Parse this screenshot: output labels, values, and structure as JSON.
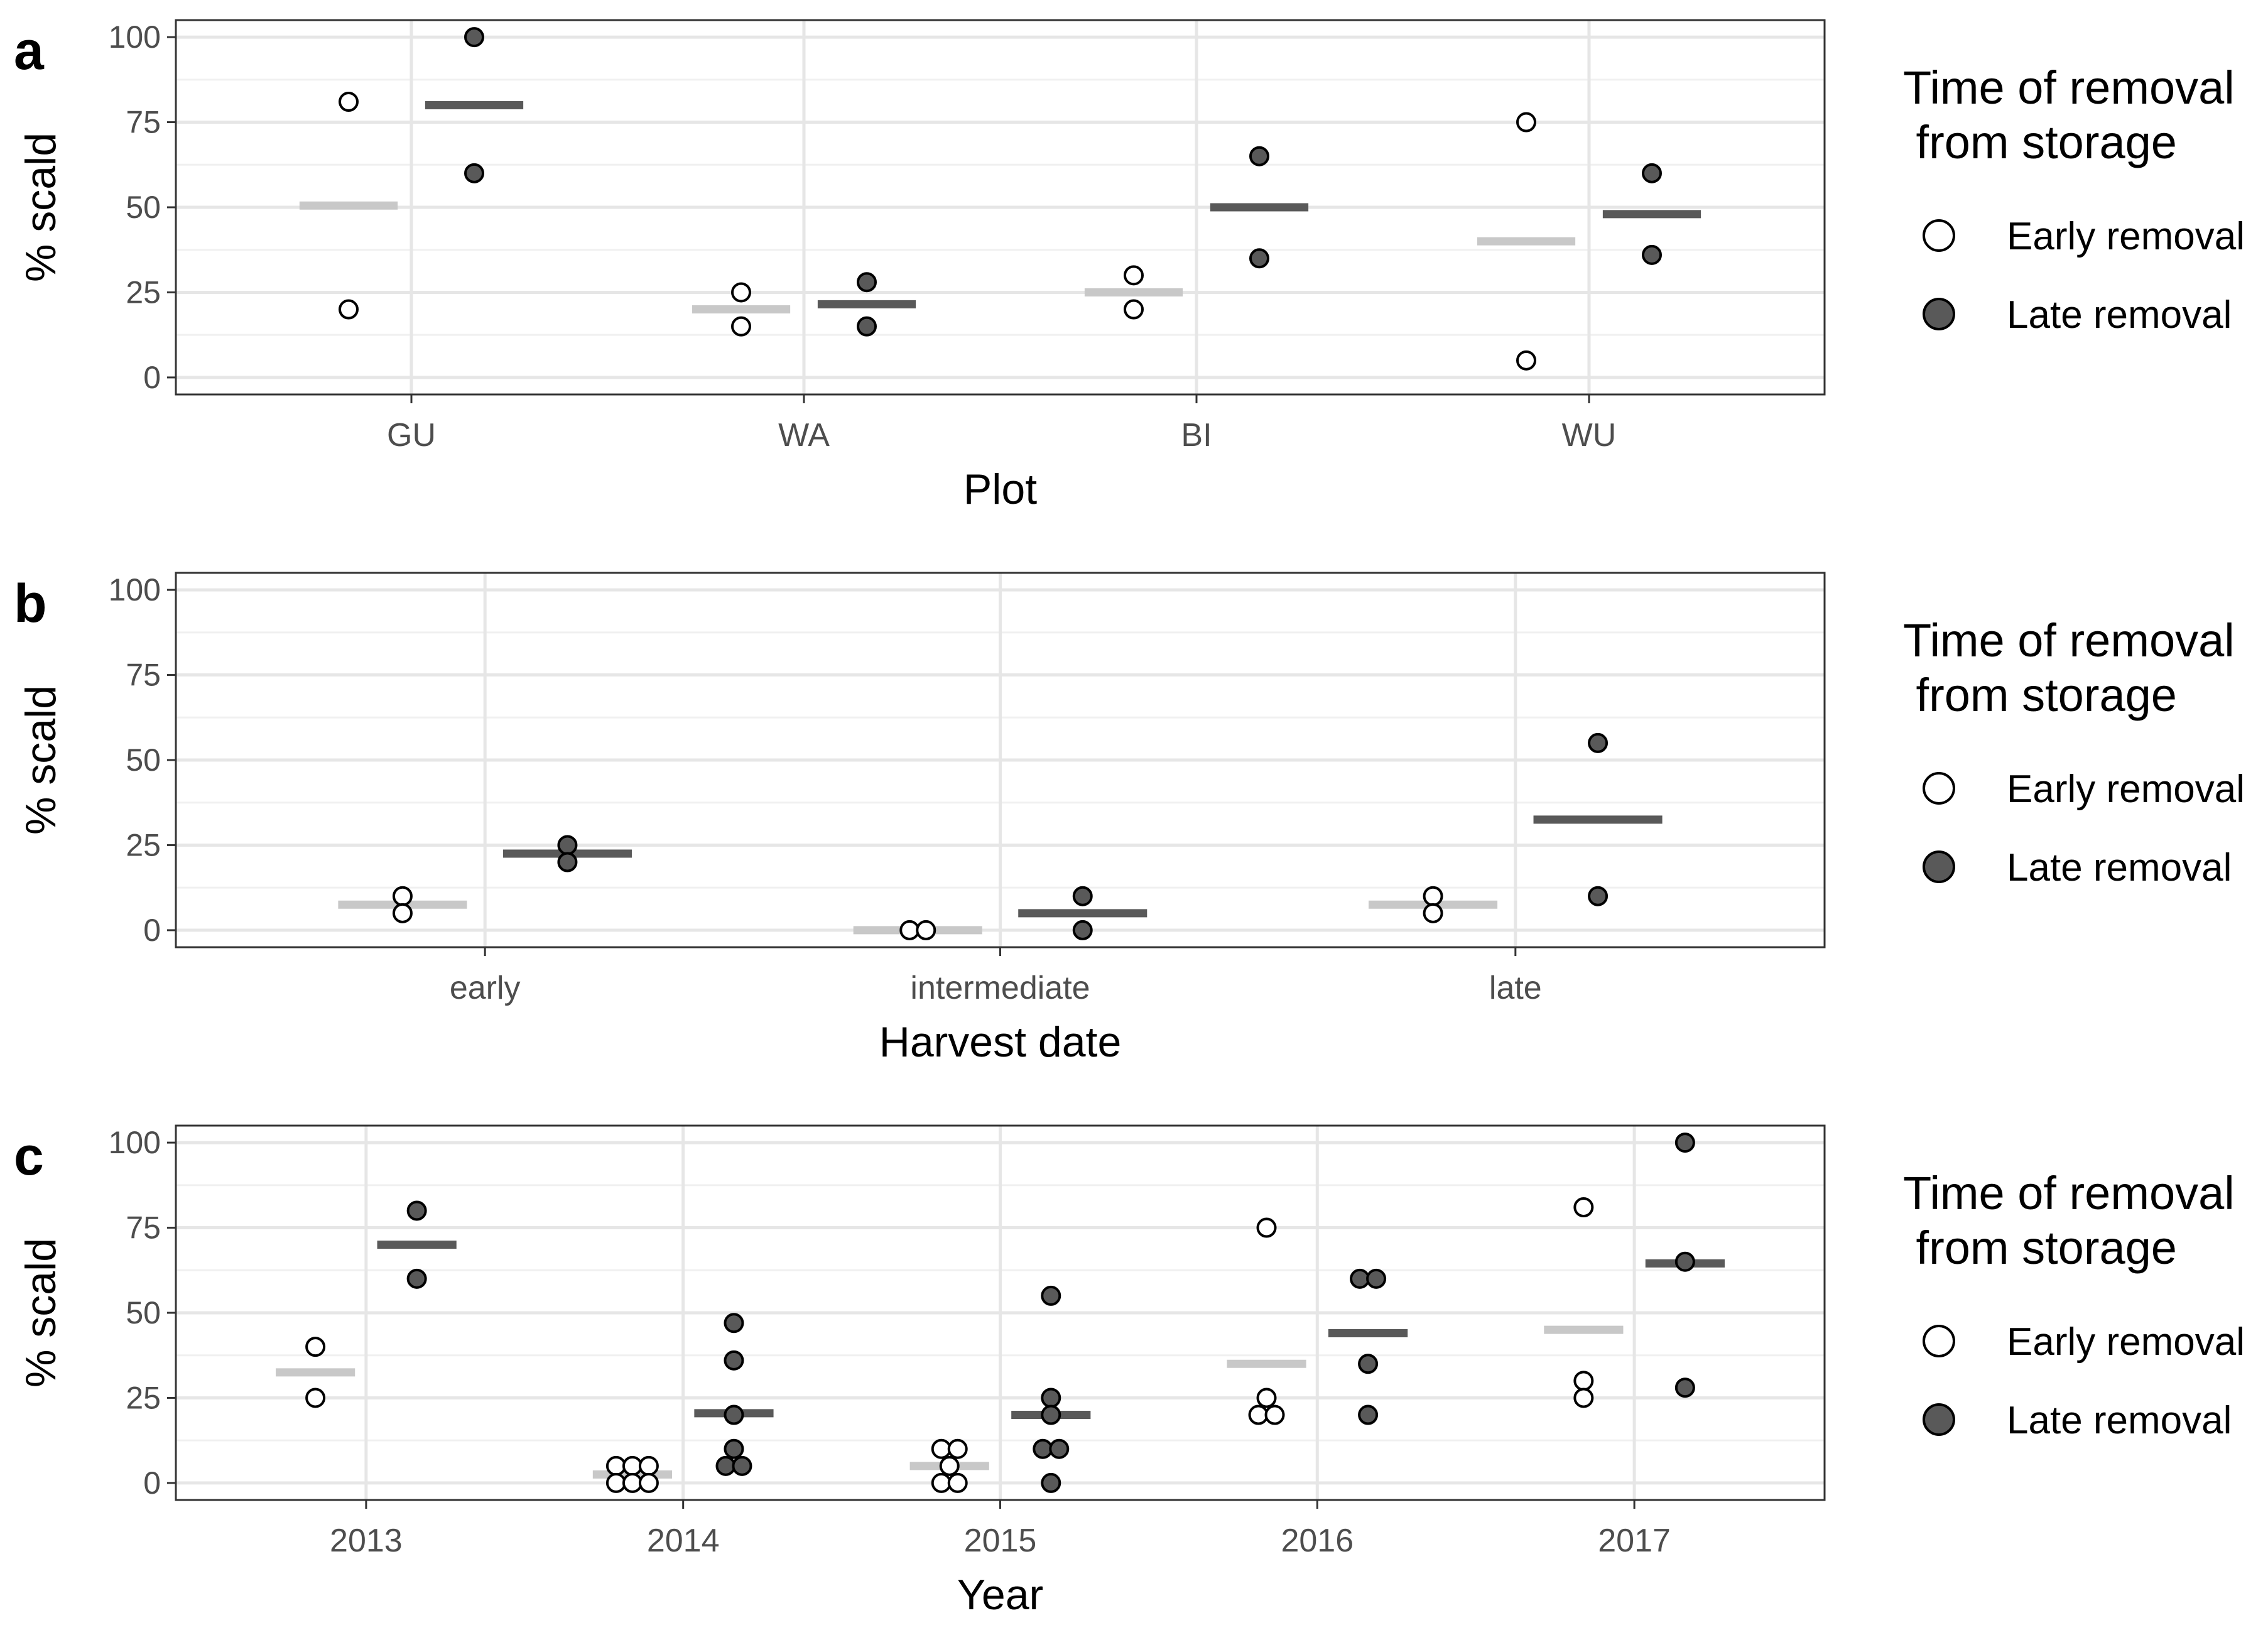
{
  "figure": {
    "series_colors": {
      "early": "#ffffff",
      "late": "#595959",
      "early_median": "#c8c8c8",
      "late_median": "#595959"
    }
  },
  "chart_data": [
    {
      "type": "scatter",
      "panel_label": "a",
      "xlabel": "Plot",
      "ylabel": "% scald",
      "categories": [
        "GU",
        "WA",
        "BI",
        "WU"
      ],
      "ylim": [
        -5,
        105
      ],
      "yticks": [
        "0",
        "25",
        "50",
        "75",
        "100"
      ],
      "legend": {
        "title_line1": "Time of removal",
        "title_line2": " from storage",
        "entries": [
          "Early removal",
          "Late removal"
        ],
        "placement": "right"
      },
      "series": [
        {
          "name": "Early removal",
          "points": [
            [
              81,
              20
            ],
            [
              25,
              15
            ],
            [
              30,
              20
            ],
            [
              75,
              5
            ]
          ],
          "medians": [
            50.5,
            20,
            25,
            40
          ]
        },
        {
          "name": "Late removal",
          "points": [
            [
              100,
              60
            ],
            [
              28,
              15
            ],
            [
              65,
              35
            ],
            [
              60,
              36
            ]
          ],
          "medians": [
            80,
            21.5,
            50,
            48
          ]
        }
      ]
    },
    {
      "type": "scatter",
      "panel_label": "b",
      "xlabel": "Harvest date",
      "ylabel": "% scald",
      "categories": [
        "early",
        "intermediate",
        "late"
      ],
      "ylim": [
        -5,
        105
      ],
      "yticks": [
        "0",
        "25",
        "50",
        "75",
        "100"
      ],
      "legend": {
        "title_line1": "Time of removal",
        "title_line2": " from storage",
        "entries": [
          "Early removal",
          "Late removal"
        ],
        "placement": "right"
      },
      "series": [
        {
          "name": "Early removal",
          "points": [
            [
              10,
              5
            ],
            [
              0,
              0
            ],
            [
              10,
              5
            ]
          ],
          "medians": [
            7.5,
            0,
            7.5
          ]
        },
        {
          "name": "Late removal",
          "points": [
            [
              25,
              20
            ],
            [
              10,
              0
            ],
            [
              55,
              10
            ]
          ],
          "medians": [
            22.5,
            5,
            32.5
          ]
        }
      ]
    },
    {
      "type": "scatter",
      "panel_label": "c",
      "xlabel": "Year",
      "ylabel": "% scald",
      "categories": [
        "2013",
        "2014",
        "2015",
        "2016",
        "2017"
      ],
      "ylim": [
        -5,
        105
      ],
      "yticks": [
        "0",
        "25",
        "50",
        "75",
        "100"
      ],
      "legend": {
        "title_line1": "Time of removal",
        "title_line2": " from storage",
        "entries": [
          "Early removal",
          "Late removal"
        ],
        "placement": "right"
      },
      "series": [
        {
          "name": "Early removal",
          "points": [
            [
              40,
              25
            ],
            [
              5,
              5,
              5,
              0,
              0,
              0
            ],
            [
              10,
              10,
              5,
              0,
              0
            ],
            [
              75,
              25,
              20,
              20
            ],
            [
              81,
              30,
              25
            ]
          ],
          "medians": [
            32.5,
            2.5,
            5,
            35,
            45
          ]
        },
        {
          "name": "Late removal",
          "points": [
            [
              80,
              60
            ],
            [
              47,
              36,
              20,
              10,
              5,
              5
            ],
            [
              55,
              25,
              20,
              10,
              10,
              0
            ],
            [
              60,
              60,
              35,
              20
            ],
            [
              100,
              65,
              28
            ]
          ],
          "medians": [
            70,
            20.5,
            20,
            44,
            64.5
          ]
        }
      ]
    }
  ]
}
